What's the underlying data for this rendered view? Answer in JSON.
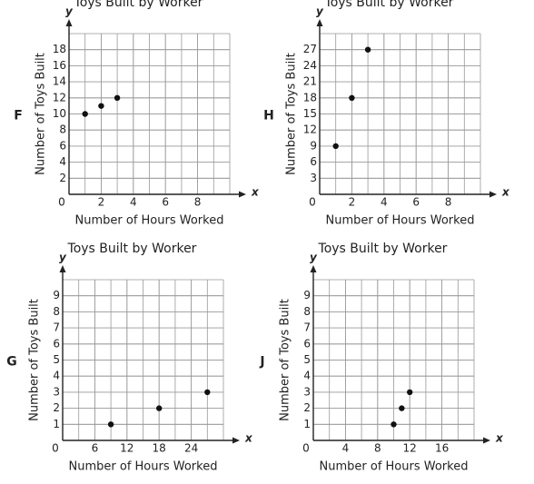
{
  "chart_data": [
    {
      "type": "scatter",
      "title": "Toys Built by Worker",
      "label": "F",
      "x_label": "Number of Hours Worked",
      "y_label": "Number of Toys Built",
      "x_axis_letter": "x",
      "y_axis_letter": "y",
      "x": [
        1,
        2,
        3
      ],
      "y": [
        10,
        11,
        12
      ],
      "color": "#111",
      "xlim": [
        0,
        10
      ],
      "ylim": [
        0,
        20
      ],
      "xticks": [
        0,
        2,
        4,
        6,
        8
      ],
      "yticks": [
        2,
        4,
        6,
        8,
        10,
        12,
        14,
        16,
        18
      ],
      "grid": true
    },
    {
      "type": "scatter",
      "title": "Toys Built by Worker",
      "label": "H",
      "x_label": "Number of Hours Worked",
      "y_label": "Number of Toys Built",
      "x_axis_letter": "x",
      "y_axis_letter": "y",
      "x": [
        1,
        2,
        3
      ],
      "y": [
        9,
        18,
        27
      ],
      "color": "#111",
      "xlim": [
        0,
        10
      ],
      "ylim": [
        0,
        30
      ],
      "xticks": [
        0,
        2,
        4,
        6,
        8
      ],
      "yticks": [
        3,
        6,
        9,
        12,
        15,
        18,
        21,
        24,
        27
      ],
      "grid": true
    },
    {
      "type": "scatter",
      "title": "Toys Built by Worker",
      "label": "G",
      "x_label": "Number of Hours Worked",
      "y_label": "Number of Toys Built",
      "x_axis_letter": "x",
      "y_axis_letter": "y",
      "x": [
        9,
        18,
        27
      ],
      "y": [
        1,
        2,
        3
      ],
      "color": "#111",
      "xlim": [
        0,
        30
      ],
      "ylim": [
        0,
        10
      ],
      "xticks": [
        0,
        6,
        12,
        18,
        24
      ],
      "yticks": [
        1,
        2,
        3,
        4,
        5,
        6,
        7,
        8,
        9
      ],
      "grid": true
    },
    {
      "type": "scatter",
      "title": "Toys Built by Worker",
      "label": "J",
      "x_label": "Number of Hours Worked",
      "y_label": "Number of Toys Built",
      "x_axis_letter": "x",
      "y_axis_letter": "y",
      "x": [
        10,
        11,
        12
      ],
      "y": [
        1,
        2,
        3
      ],
      "color": "#111",
      "xlim": [
        0,
        20
      ],
      "ylim": [
        0,
        10
      ],
      "xticks": [
        0,
        4,
        8,
        12,
        16
      ],
      "yticks": [
        1,
        2,
        3,
        4,
        5,
        6,
        7,
        8,
        9
      ],
      "grid": true
    }
  ]
}
